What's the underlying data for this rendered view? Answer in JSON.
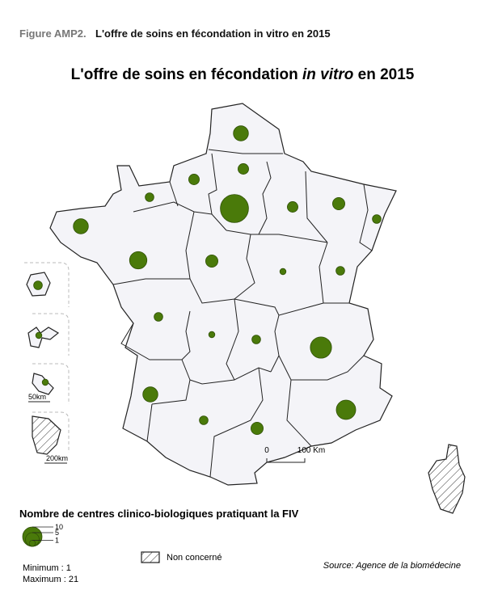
{
  "figure": {
    "label": "Figure AMP2.",
    "caption": "L'offre de soins en fécondation in vitro en 2015"
  },
  "map": {
    "title": {
      "prefix": "L'offre de soins en fécondation",
      "italic": "in vitro",
      "suffix": "en 2015"
    },
    "centers": [
      6,
      3,
      3,
      2,
      6,
      21,
      3,
      4,
      2,
      8,
      4,
      1,
      2,
      2,
      1,
      2,
      12,
      6,
      2,
      4,
      10,
      2,
      1,
      1
    ],
    "scale": {
      "zero": "0",
      "label": "100 Km"
    },
    "inset_scales": [
      "50km",
      "200km"
    ]
  },
  "legend": {
    "title": "Nombre de centres clinico-biologiques pratiquant la FIV",
    "sizes": [
      10,
      5,
      1
    ],
    "minimum": "Minimum : 1",
    "maximum": "Maximum : 21",
    "not_concerned": "Non concerné"
  },
  "source": "Source: Agence de la biomédecine"
}
